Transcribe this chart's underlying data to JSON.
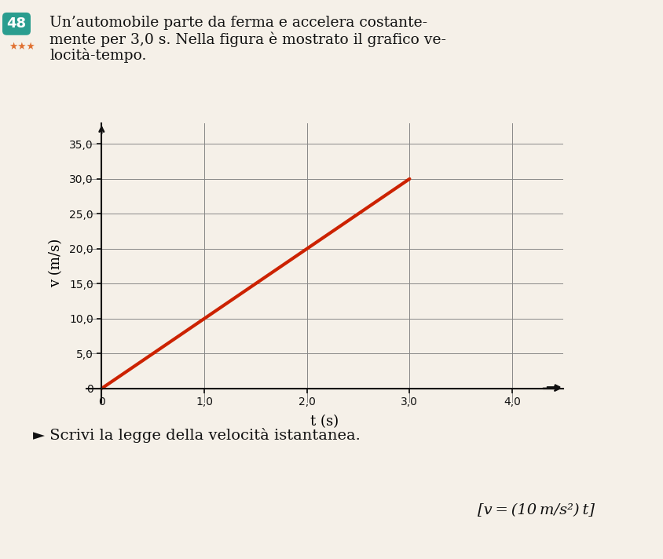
{
  "title_number": "48",
  "title_number_bg": "#2a9d8f",
  "title_text_line1": "Un’automobile parte da ferma e accelera costante-",
  "title_text_line2": "mente per 3,0 s. Nella figura è mostrato il grafico ve-",
  "title_text_line3": "locità-tempo.",
  "ylabel": "v (m/s)",
  "xlabel": "t (s)",
  "yticks": [
    0,
    5.0,
    10.0,
    15.0,
    20.0,
    25.0,
    30.0,
    35.0
  ],
  "ytick_labels": [
    "0",
    "5,0",
    "10,0",
    "15,0",
    "20,0",
    "25,0",
    "30,0",
    "35,0"
  ],
  "xticks": [
    0,
    1.0,
    2.0,
    3.0,
    4.0
  ],
  "xtick_labels": [
    "0",
    "1,0",
    "2,0",
    "3,0",
    "4,0"
  ],
  "xlim": [
    -0.15,
    4.5
  ],
  "ylim": [
    -2.0,
    38.0
  ],
  "line_x": [
    0,
    3.0
  ],
  "line_y": [
    0,
    30.0
  ],
  "line_color": "#cc2200",
  "line_width": 3.0,
  "grid_color": "#888888",
  "grid_linewidth": 0.7,
  "background_color": "#f5f0e8",
  "axes_color": "#111111",
  "question_text": "► Scrivi la legge della velocità istantanea.",
  "answer_text": "[v = (10 m/s²) t]",
  "stars": 3,
  "figure_bg": "#f5f0e8"
}
